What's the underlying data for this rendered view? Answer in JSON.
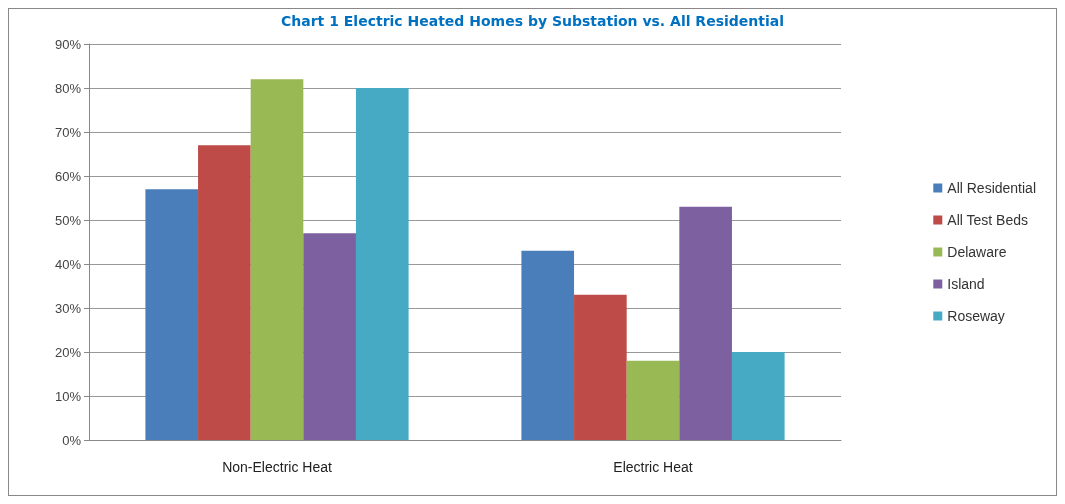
{
  "chart_data": {
    "type": "bar",
    "title": "Chart 1 Electric Heated Homes by Substation vs. All Residential",
    "categories": [
      "Non-Electric Heat",
      "Electric Heat"
    ],
    "series": [
      {
        "name": "All Residential",
        "color": "#4a7ebb",
        "values": [
          57,
          43
        ]
      },
      {
        "name": "All Test Beds",
        "color": "#be4b48",
        "values": [
          67,
          33
        ]
      },
      {
        "name": "Delaware",
        "color": "#98b954",
        "values": [
          82,
          18
        ]
      },
      {
        "name": "Island",
        "color": "#7d60a0",
        "values": [
          47,
          53
        ]
      },
      {
        "name": "Roseway",
        "color": "#46aac5",
        "values": [
          80,
          20
        ]
      }
    ],
    "ylim": [
      0,
      90
    ],
    "yticks": [
      {
        "value": 0,
        "label": "0%"
      },
      {
        "value": 10,
        "label": "10%"
      },
      {
        "value": 20,
        "label": "20%"
      },
      {
        "value": 30,
        "label": "30%"
      },
      {
        "value": 40,
        "label": "40%"
      },
      {
        "value": 50,
        "label": "50%"
      },
      {
        "value": 60,
        "label": "60%"
      },
      {
        "value": 70,
        "label": "70%"
      },
      {
        "value": 80,
        "label": "80%"
      },
      {
        "value": 90,
        "label": "90%"
      }
    ],
    "grid": "y",
    "legend": "right"
  }
}
